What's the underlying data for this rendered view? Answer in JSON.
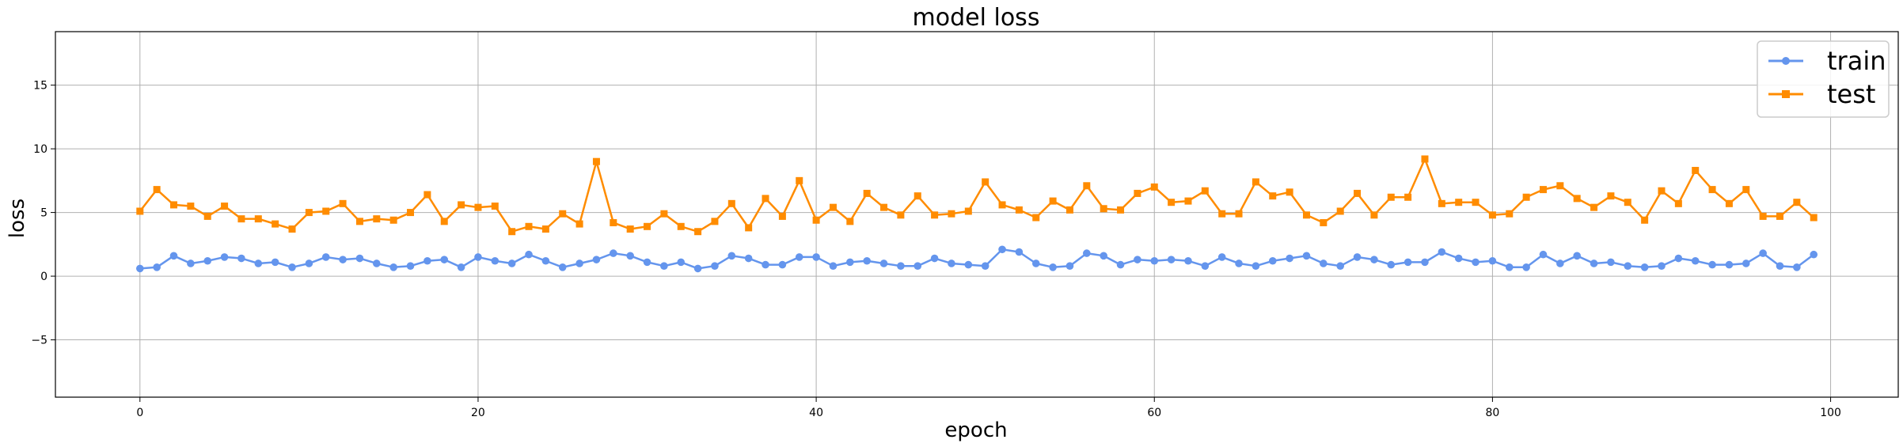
{
  "chart_data": {
    "type": "line",
    "title": "model loss",
    "xlabel": "epoch",
    "ylabel": "loss",
    "xlim": [
      -5,
      104
    ],
    "ylim": [
      -9.5,
      19.2
    ],
    "xticks": [
      0,
      20,
      40,
      60,
      80,
      100
    ],
    "yticks": [
      -5,
      0,
      5,
      10,
      15
    ],
    "ytick_labels": [
      "−5",
      "0",
      "5",
      "10",
      "15"
    ],
    "grid": true,
    "legend_position": "top-right",
    "series": [
      {
        "name": "train",
        "color": "#6495ED",
        "marker": "circle",
        "values": [
          0.6,
          0.7,
          1.6,
          1.0,
          1.2,
          1.5,
          1.4,
          1.0,
          1.1,
          0.7,
          1.0,
          1.5,
          1.3,
          1.4,
          1.0,
          0.7,
          0.8,
          1.2,
          1.3,
          0.7,
          1.5,
          1.2,
          1.0,
          1.7,
          1.2,
          0.7,
          1.0,
          1.3,
          1.8,
          1.6,
          1.1,
          0.8,
          1.1,
          0.6,
          0.8,
          1.6,
          1.4,
          0.9,
          0.9,
          1.5,
          1.5,
          0.8,
          1.1,
          1.2,
          1.0,
          0.8,
          0.8,
          1.4,
          1.0,
          0.9,
          0.8,
          2.1,
          1.9,
          1.0,
          0.7,
          0.8,
          1.8,
          1.6,
          0.9,
          1.3,
          1.2,
          1.3,
          1.2,
          0.8,
          1.5,
          1.0,
          0.8,
          1.2,
          1.4,
          1.6,
          1.0,
          0.8,
          1.5,
          1.3,
          0.9,
          1.1,
          1.1,
          1.9,
          1.4,
          1.1,
          1.2,
          0.7,
          0.7,
          1.7,
          1.0,
          1.6,
          1.0,
          1.1,
          0.8,
          0.7,
          0.8,
          1.4,
          1.2,
          0.9,
          0.9,
          1.0,
          1.8,
          0.8,
          0.7,
          1.7
        ]
      },
      {
        "name": "test",
        "color": "#FF8C00",
        "marker": "square",
        "values": [
          5.1,
          6.8,
          5.6,
          5.5,
          4.7,
          5.5,
          4.5,
          4.5,
          4.1,
          3.7,
          5.0,
          5.1,
          5.7,
          4.3,
          4.5,
          4.4,
          5.0,
          6.4,
          4.3,
          5.6,
          5.4,
          5.5,
          3.5,
          3.9,
          3.7,
          4.9,
          4.1,
          9.0,
          4.2,
          3.7,
          3.9,
          4.9,
          3.9,
          3.5,
          4.3,
          5.7,
          3.8,
          6.1,
          4.7,
          7.5,
          4.4,
          5.4,
          4.3,
          6.5,
          5.4,
          4.8,
          6.3,
          4.8,
          4.9,
          5.1,
          7.4,
          5.6,
          5.2,
          4.6,
          5.9,
          5.2,
          7.1,
          5.3,
          5.2,
          6.5,
          7.0,
          5.8,
          5.9,
          6.7,
          4.9,
          4.9,
          7.4,
          6.3,
          6.6,
          4.8,
          4.2,
          5.1,
          6.5,
          4.8,
          6.2,
          6.2,
          9.2,
          5.7,
          5.8,
          5.8,
          4.8,
          4.9,
          6.2,
          6.8,
          7.1,
          6.1,
          5.4,
          6.3,
          5.8,
          4.4,
          6.7,
          5.7,
          8.3,
          6.8,
          5.7,
          6.8,
          4.7,
          4.7,
          5.8,
          4.6
        ]
      }
    ]
  }
}
